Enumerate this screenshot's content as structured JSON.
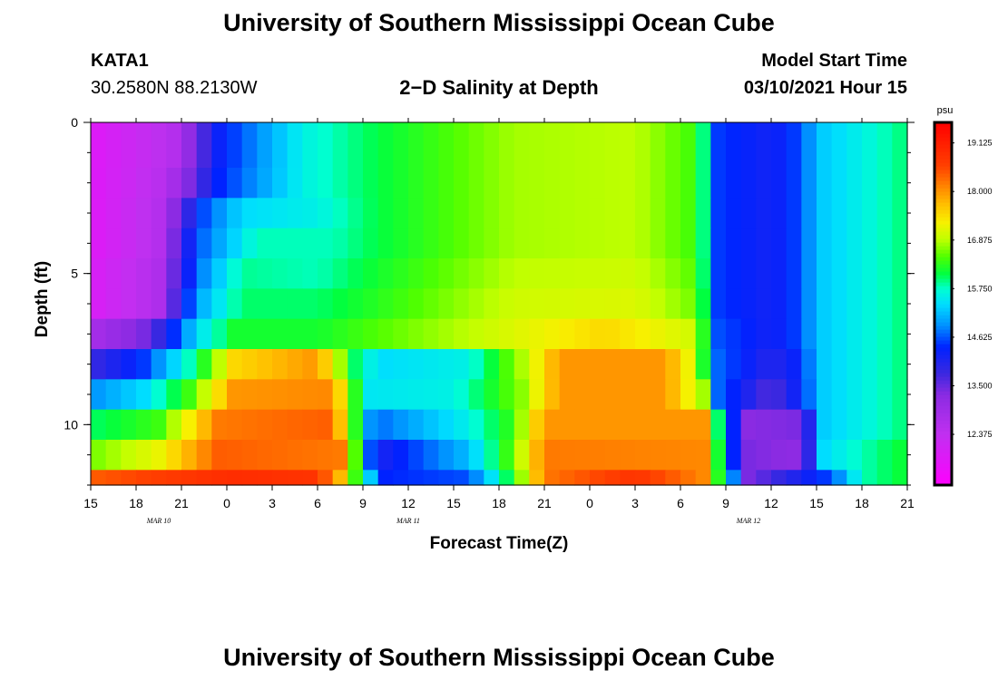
{
  "header": {
    "title": "University of Southern Mississippi Ocean Cube",
    "footer_title": "University of Southern Mississippi Ocean Cube",
    "station_id": "KATA1",
    "station_coords": "30.2580N 88.2130W",
    "plot_title": "2−D Salinity at Depth",
    "model_start_label": "Model Start Time",
    "model_start_value": "03/10/2021 Hour 15"
  },
  "chart_data": {
    "type": "heatmap",
    "title": "2−D Salinity at Depth",
    "xlabel": "Forecast Time(Z)",
    "ylabel": "Depth (ft)",
    "x_tick_labels": [
      "15",
      "18",
      "21",
      "0",
      "3",
      "6",
      "9",
      "12",
      "15",
      "18",
      "21",
      "0",
      "3",
      "6",
      "9",
      "12",
      "15",
      "18",
      "21"
    ],
    "x_range_hours": [
      0,
      54
    ],
    "x_tick_step_hours": 3,
    "date_labels": [
      {
        "text": "MAR 10",
        "hour": 4.5
      },
      {
        "text": "MAR 11",
        "hour": 21
      },
      {
        "text": "MAR 12",
        "hour": 43.5
      }
    ],
    "y_tick_labels": [
      "0",
      "5",
      "10"
    ],
    "y_tick_values": [
      0,
      5,
      10
    ],
    "y_range_ft": [
      0,
      12
    ],
    "depth_levels": [
      {
        "top": 0,
        "bottom": 1.5
      },
      {
        "top": 1.5,
        "bottom": 2.5
      },
      {
        "top": 2.5,
        "bottom": 3.5
      },
      {
        "top": 3.5,
        "bottom": 4.5
      },
      {
        "top": 4.5,
        "bottom": 5.5
      },
      {
        "top": 5.5,
        "bottom": 6.5
      },
      {
        "top": 6.5,
        "bottom": 7.5
      },
      {
        "top": 7.5,
        "bottom": 8.5
      },
      {
        "top": 8.5,
        "bottom": 9.5
      },
      {
        "top": 9.5,
        "bottom": 10.5
      },
      {
        "top": 10.5,
        "bottom": 11.5
      },
      {
        "top": 11.5,
        "bottom": 12
      }
    ],
    "salinity_keys": [
      [
        [
          0,
          11.8
        ],
        [
          5.5,
          12.6
        ],
        [
          8.5,
          14.3
        ],
        [
          14,
          15.6
        ],
        [
          19,
          16.1
        ],
        [
          28,
          16.8
        ],
        [
          36,
          16.9
        ],
        [
          40,
          16.4
        ],
        [
          41,
          15.5
        ],
        [
          41.5,
          14.5
        ],
        [
          45,
          14.2
        ],
        [
          46.5,
          14.5
        ],
        [
          48.5,
          15.3
        ],
        [
          51,
          15.6
        ],
        [
          54,
          16.0
        ]
      ],
      [
        [
          0,
          11.8
        ],
        [
          5.0,
          12.6
        ],
        [
          8.5,
          14.4
        ],
        [
          14,
          15.6
        ],
        [
          19,
          16.1
        ],
        [
          28,
          16.8
        ],
        [
          36,
          16.9
        ],
        [
          40,
          16.4
        ],
        [
          41,
          15.5
        ],
        [
          41.5,
          14.5
        ],
        [
          45,
          14.2
        ],
        [
          46.5,
          14.5
        ],
        [
          48.5,
          15.3
        ],
        [
          51,
          15.6
        ],
        [
          54,
          16.0
        ]
      ],
      [
        [
          0,
          11.8
        ],
        [
          4.5,
          12.6
        ],
        [
          7.5,
          14.6
        ],
        [
          10,
          15.4
        ],
        [
          15,
          15.6
        ],
        [
          19,
          16.1
        ],
        [
          28,
          16.8
        ],
        [
          36,
          16.9
        ],
        [
          40,
          16.4
        ],
        [
          41,
          15.5
        ],
        [
          41.5,
          14.5
        ],
        [
          45,
          14.2
        ],
        [
          46.5,
          14.5
        ],
        [
          48.5,
          15.3
        ],
        [
          51,
          15.6
        ],
        [
          54,
          16.0
        ]
      ],
      [
        [
          0,
          11.8
        ],
        [
          4.5,
          12.6
        ],
        [
          7.0,
          14.6
        ],
        [
          11,
          15.8
        ],
        [
          16,
          15.8
        ],
        [
          19,
          16.1
        ],
        [
          28,
          16.8
        ],
        [
          36,
          16.9
        ],
        [
          40,
          16.4
        ],
        [
          41,
          15.5
        ],
        [
          41.5,
          14.5
        ],
        [
          45,
          14.2
        ],
        [
          46.5,
          14.5
        ],
        [
          48.5,
          15.3
        ],
        [
          51,
          15.6
        ],
        [
          54,
          16.0
        ]
      ],
      [
        [
          0,
          11.9
        ],
        [
          4.5,
          12.7
        ],
        [
          7.0,
          14.7
        ],
        [
          10,
          15.9
        ],
        [
          15,
          15.8
        ],
        [
          19,
          16.2
        ],
        [
          28,
          16.9
        ],
        [
          36,
          17.0
        ],
        [
          40,
          16.5
        ],
        [
          41,
          15.5
        ],
        [
          41.5,
          14.5
        ],
        [
          45,
          14.2
        ],
        [
          46.5,
          14.5
        ],
        [
          48.5,
          15.3
        ],
        [
          51,
          15.6
        ],
        [
          54,
          16.0
        ]
      ],
      [
        [
          0,
          11.9
        ],
        [
          4.5,
          12.7
        ],
        [
          7.0,
          15.0
        ],
        [
          10,
          16.0
        ],
        [
          15,
          16.0
        ],
        [
          19,
          16.3
        ],
        [
          28,
          17.0
        ],
        [
          36,
          17.1
        ],
        [
          40,
          16.6
        ],
        [
          41,
          15.6
        ],
        [
          41.5,
          14.5
        ],
        [
          45,
          14.2
        ],
        [
          46.5,
          14.5
        ],
        [
          48.5,
          15.3
        ],
        [
          51,
          15.6
        ],
        [
          54,
          16.0
        ]
      ],
      [
        [
          0,
          12.8
        ],
        [
          4.0,
          13.5
        ],
        [
          7.0,
          15.4
        ],
        [
          9.5,
          16.2
        ],
        [
          15,
          16.2
        ],
        [
          19,
          16.5
        ],
        [
          28,
          17.1
        ],
        [
          34,
          17.5
        ],
        [
          40,
          17.0
        ],
        [
          41,
          15.6
        ],
        [
          41.5,
          14.6
        ],
        [
          45,
          14.2
        ],
        [
          46.5,
          14.5
        ],
        [
          48.5,
          15.3
        ],
        [
          51,
          15.6
        ],
        [
          54,
          16.0
        ]
      ],
      [
        [
          0,
          13.8
        ],
        [
          3.5,
          14.5
        ],
        [
          7.0,
          16.0
        ],
        [
          9.5,
          17.5
        ],
        [
          15,
          18.0
        ],
        [
          17.5,
          16.0
        ],
        [
          19,
          15.4
        ],
        [
          25,
          15.6
        ],
        [
          29,
          17.0
        ],
        [
          31,
          18.0
        ],
        [
          38,
          18.0
        ],
        [
          40,
          17.0
        ],
        [
          41.5,
          14.7
        ],
        [
          45,
          14.0
        ],
        [
          46.5,
          14.3
        ],
        [
          48.5,
          15.3
        ],
        [
          51,
          15.6
        ],
        [
          54,
          16.0
        ]
      ],
      [
        [
          0,
          14.9
        ],
        [
          3.5,
          15.4
        ],
        [
          6.5,
          16.4
        ],
        [
          9.5,
          18.0
        ],
        [
          16,
          18.1
        ],
        [
          17.5,
          16.3
        ],
        [
          18.5,
          15.5
        ],
        [
          24,
          15.6
        ],
        [
          28.5,
          16.7
        ],
        [
          31,
          18.0
        ],
        [
          38,
          18.0
        ],
        [
          40.5,
          16.8
        ],
        [
          41.5,
          14.7
        ],
        [
          45,
          13.6
        ],
        [
          46.5,
          14.2
        ],
        [
          48.5,
          15.3
        ],
        [
          51,
          15.6
        ],
        [
          54,
          16.0
        ]
      ],
      [
        [
          0,
          16.0
        ],
        [
          4.5,
          16.4
        ],
        [
          8.5,
          18.2
        ],
        [
          16,
          18.4
        ],
        [
          17.5,
          16.3
        ],
        [
          18,
          15.0
        ],
        [
          19.5,
          14.8
        ],
        [
          25,
          15.6
        ],
        [
          28,
          16.4
        ],
        [
          30,
          18.0
        ],
        [
          40.5,
          18.0
        ],
        [
          41.5,
          16.0
        ],
        [
          42.5,
          14.4
        ],
        [
          43.5,
          13.3
        ],
        [
          47,
          13.4
        ],
        [
          48.5,
          15.3
        ],
        [
          51,
          15.6
        ],
        [
          54,
          16.0
        ]
      ],
      [
        [
          0,
          16.6
        ],
        [
          4.5,
          17.2
        ],
        [
          8.5,
          18.4
        ],
        [
          16.5,
          18.2
        ],
        [
          17.5,
          16.5
        ],
        [
          18,
          14.8
        ],
        [
          19.5,
          14.2
        ],
        [
          25,
          15.2
        ],
        [
          28,
          16.6
        ],
        [
          30,
          18.2
        ],
        [
          40.5,
          18.1
        ],
        [
          41.5,
          16.2
        ],
        [
          42.5,
          14.4
        ],
        [
          43.5,
          13.4
        ],
        [
          47,
          13.2
        ],
        [
          48.5,
          15.4
        ],
        [
          51,
          15.8
        ],
        [
          54,
          16.2
        ]
      ],
      [
        [
          0,
          18.4
        ],
        [
          9,
          18.9
        ],
        [
          15,
          18.8
        ],
        [
          17,
          17.4
        ],
        [
          17.7,
          16.0
        ],
        [
          19.5,
          14.4
        ],
        [
          25,
          14.6
        ],
        [
          28,
          16.3
        ],
        [
          30,
          18.2
        ],
        [
          36,
          18.8
        ],
        [
          40.5,
          18.1
        ],
        [
          41.5,
          16.3
        ],
        [
          43.5,
          13.4
        ],
        [
          49,
          14.6
        ],
        [
          51,
          15.8
        ],
        [
          54,
          16.2
        ]
      ]
    ],
    "colorbar": {
      "unit": "psu",
      "range": [
        11.2,
        19.6
      ],
      "tick_labels": [
        "19.125",
        "18.000",
        "16.875",
        "15.750",
        "14.625",
        "13.500",
        "12.375"
      ],
      "tick_values": [
        19.125,
        18.0,
        16.875,
        15.75,
        14.625,
        13.5,
        12.375
      ],
      "scale_stops": [
        {
          "v": 11.2,
          "color": "#ff00ff"
        },
        {
          "v": 12.4,
          "color": "#c030f0"
        },
        {
          "v": 13.3,
          "color": "#8a2be2"
        },
        {
          "v": 13.8,
          "color": "#3a28e0"
        },
        {
          "v": 14.4,
          "color": "#0022ff"
        },
        {
          "v": 14.9,
          "color": "#0090ff"
        },
        {
          "v": 15.4,
          "color": "#00ddff"
        },
        {
          "v": 15.75,
          "color": "#00ffd0"
        },
        {
          "v": 16.1,
          "color": "#00ff40"
        },
        {
          "v": 16.5,
          "color": "#50ff00"
        },
        {
          "v": 16.9,
          "color": "#c0ff00"
        },
        {
          "v": 17.3,
          "color": "#f8f000"
        },
        {
          "v": 17.7,
          "color": "#ffc000"
        },
        {
          "v": 18.1,
          "color": "#ff8800"
        },
        {
          "v": 18.6,
          "color": "#ff4000"
        },
        {
          "v": 19.6,
          "color": "#ff0000"
        }
      ]
    }
  }
}
